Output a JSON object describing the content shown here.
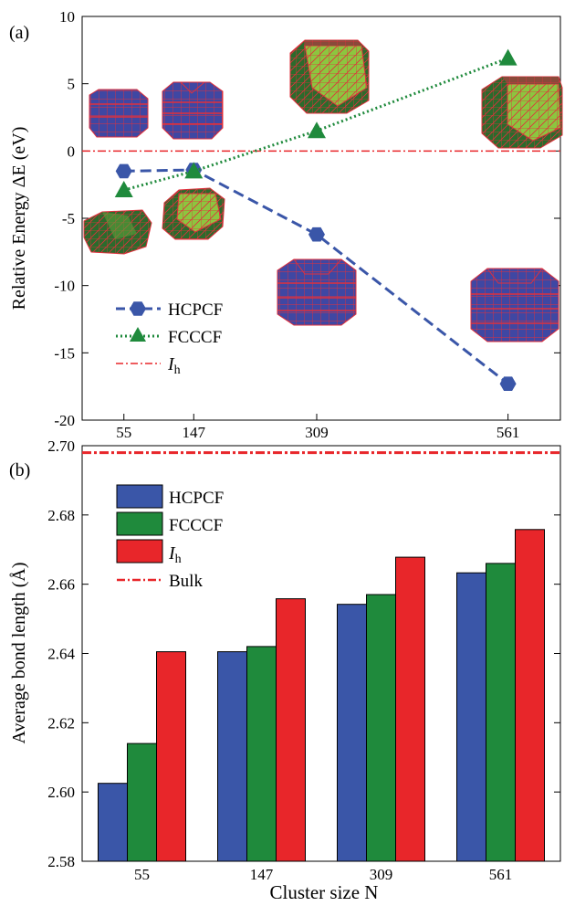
{
  "chart_data": [
    {
      "panel_label": "(a)",
      "type": "line",
      "ylabel": "Relative Energy ΔE (eV)",
      "xlabel": "",
      "categories": [
        "55",
        "147",
        "309",
        "561"
      ],
      "x": [
        55,
        147,
        309,
        561
      ],
      "xlim": [
        0,
        630
      ],
      "ylim": [
        -20,
        10
      ],
      "yticks": [
        10,
        5,
        0,
        -5,
        -10,
        -15,
        -20
      ],
      "series": [
        {
          "name": "HCPCF",
          "marker": "hexagon",
          "line": "dashed",
          "color": "#3a56a8",
          "values": [
            -1.5,
            -1.4,
            -6.2,
            -17.3
          ]
        },
        {
          "name": "FCCCF",
          "marker": "triangle",
          "line": "dotted",
          "color": "#1f8a3c",
          "values": [
            -2.9,
            -1.5,
            1.5,
            6.9
          ]
        }
      ],
      "reference_line": {
        "name": "Ih",
        "name_main": "I",
        "name_sub": "h",
        "value": 0,
        "color": "#e8262a",
        "style": "dash-dot"
      },
      "legend": "bottom-left",
      "grid": false
    },
    {
      "panel_label": "(b)",
      "type": "bar",
      "xlabel": "Cluster size N",
      "ylabel": "Average bond length (Å)",
      "categories": [
        "55",
        "147",
        "309",
        "561"
      ],
      "ylim": [
        2.58,
        2.7
      ],
      "yticks": [
        "2.70",
        "2.68",
        "2.66",
        "2.64",
        "2.62",
        "2.60",
        "2.58"
      ],
      "series": [
        {
          "name": "HCPCF",
          "color": "#3a56a8",
          "values": [
            2.6025,
            2.6405,
            2.6542,
            2.6633
          ]
        },
        {
          "name": "FCCCF",
          "color": "#1f8a3c",
          "values": [
            2.614,
            2.642,
            2.657,
            2.666
          ]
        },
        {
          "name": "Ih",
          "name_main": "I",
          "name_sub": "h",
          "color": "#e8262a",
          "values": [
            2.6405,
            2.6558,
            2.6678,
            2.6758
          ]
        }
      ],
      "reference_line": {
        "name": "Bulk",
        "value": 2.698,
        "color": "#e8262a",
        "style": "dash-dot"
      },
      "legend": "top-left",
      "grid": false
    }
  ],
  "icons": [
    "hcp-cluster-icon",
    "fcc-cluster-icon",
    "ih-cluster-icon"
  ]
}
